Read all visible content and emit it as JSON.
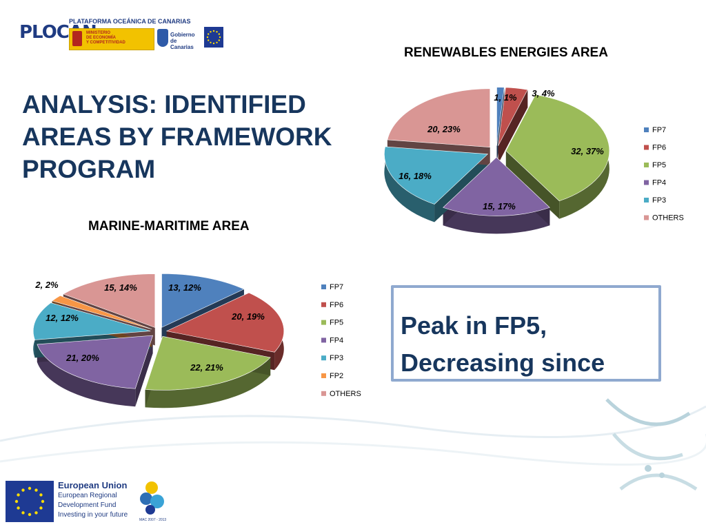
{
  "header": {
    "plocan": "PLOCAN",
    "plataforma": "PLATAFORMA OCEÁNICA DE CANARIAS",
    "ministerio": [
      "MINISTERIO",
      "DE ECONOMÍA",
      "Y COMPETITIVIDAD"
    ],
    "gobierno": [
      "Gobierno",
      "de Canarias"
    ]
  },
  "title": [
    "ANALYSIS: IDENTIFIED",
    "AREAS BY FRAMEWORK",
    "PROGRAM"
  ],
  "peak": [
    "Peak in FP5,",
    "Decreasing since"
  ],
  "footer": {
    "eu": "European Union",
    "lines": [
      "European Regional",
      "Development Fund",
      "Investing in your future"
    ],
    "mac": "MAC 2007 - 2013"
  },
  "colors": {
    "FP7": "#4f81bd",
    "FP6": "#c0504d",
    "FP5": "#9bbb59",
    "FP4": "#8064a2",
    "FP3": "#4bacc6",
    "FP2": "#f79646",
    "OTHERS": "#d99694",
    "title": "#17365d",
    "box_border": "#8fa9cf"
  },
  "chart_data": [
    {
      "type": "pie",
      "title": "RENEWABLES ENERGIES AREA",
      "categories": [
        "FP7",
        "FP6",
        "FP5",
        "FP4",
        "FP3",
        "OTHERS"
      ],
      "values": [
        1,
        3,
        32,
        15,
        16,
        20
      ],
      "labels": [
        "1, 1%",
        "3, 4%",
        "32, 37%",
        "15, 17%",
        "16, 18%",
        "20, 23%"
      ],
      "legend": "right"
    },
    {
      "type": "pie",
      "title": "MARINE-MARITIME AREA",
      "categories": [
        "FP7",
        "FP6",
        "FP5",
        "FP4",
        "FP3",
        "FP2",
        "OTHERS"
      ],
      "values": [
        13,
        20,
        22,
        21,
        12,
        2,
        15
      ],
      "labels": [
        "13, 12%",
        "20, 19%",
        "22, 21%",
        "21, 20%",
        "12, 12%",
        "2, 2%",
        "15, 14%"
      ],
      "legend": "right"
    }
  ]
}
